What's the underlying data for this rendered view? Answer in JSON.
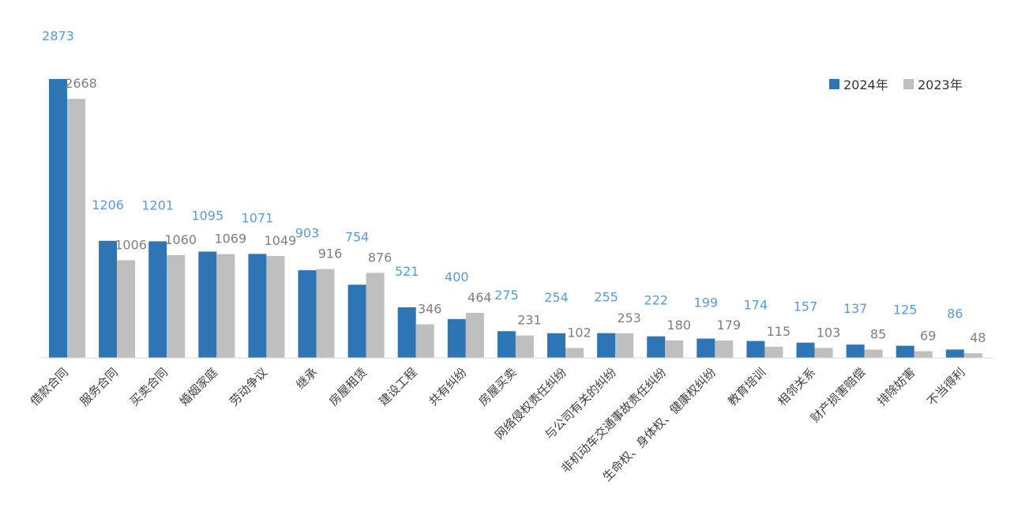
{
  "chart_data": {
    "type": "bar",
    "categories": [
      "借款合同",
      "服务合同",
      "买卖合同",
      "婚姻家庭",
      "劳动争议",
      "继承",
      "房屋租赁",
      "建设工程",
      "共有纠纷",
      "房屋买卖",
      "网络侵权责任纠纷",
      "与公司有关的纠纷",
      "非机动车交通事故责任纠纷",
      "生命权、身体权、健康权纠纷",
      "教育培训",
      "相邻关系",
      "财产损害赔偿",
      "排除妨害",
      "不当得利"
    ],
    "series": [
      {
        "name": "2024年",
        "color": "#2e75b6",
        "label_color": "#5b9bd5",
        "values": [
          2873,
          1206,
          1201,
          1095,
          1071,
          903,
          754,
          521,
          400,
          275,
          254,
          255,
          222,
          199,
          174,
          157,
          137,
          125,
          86
        ]
      },
      {
        "name": "2023年",
        "color": "#bfbfbf",
        "label_color": "#7f7f7f",
        "values": [
          2668,
          1006,
          1060,
          1069,
          1049,
          916,
          876,
          346,
          464,
          231,
          102,
          253,
          180,
          179,
          115,
          103,
          85,
          69,
          48
        ]
      }
    ],
    "ylim": [
      0,
      2873
    ],
    "grid": false,
    "legend": "top-right",
    "title": "",
    "xlabel": "",
    "ylabel": ""
  }
}
